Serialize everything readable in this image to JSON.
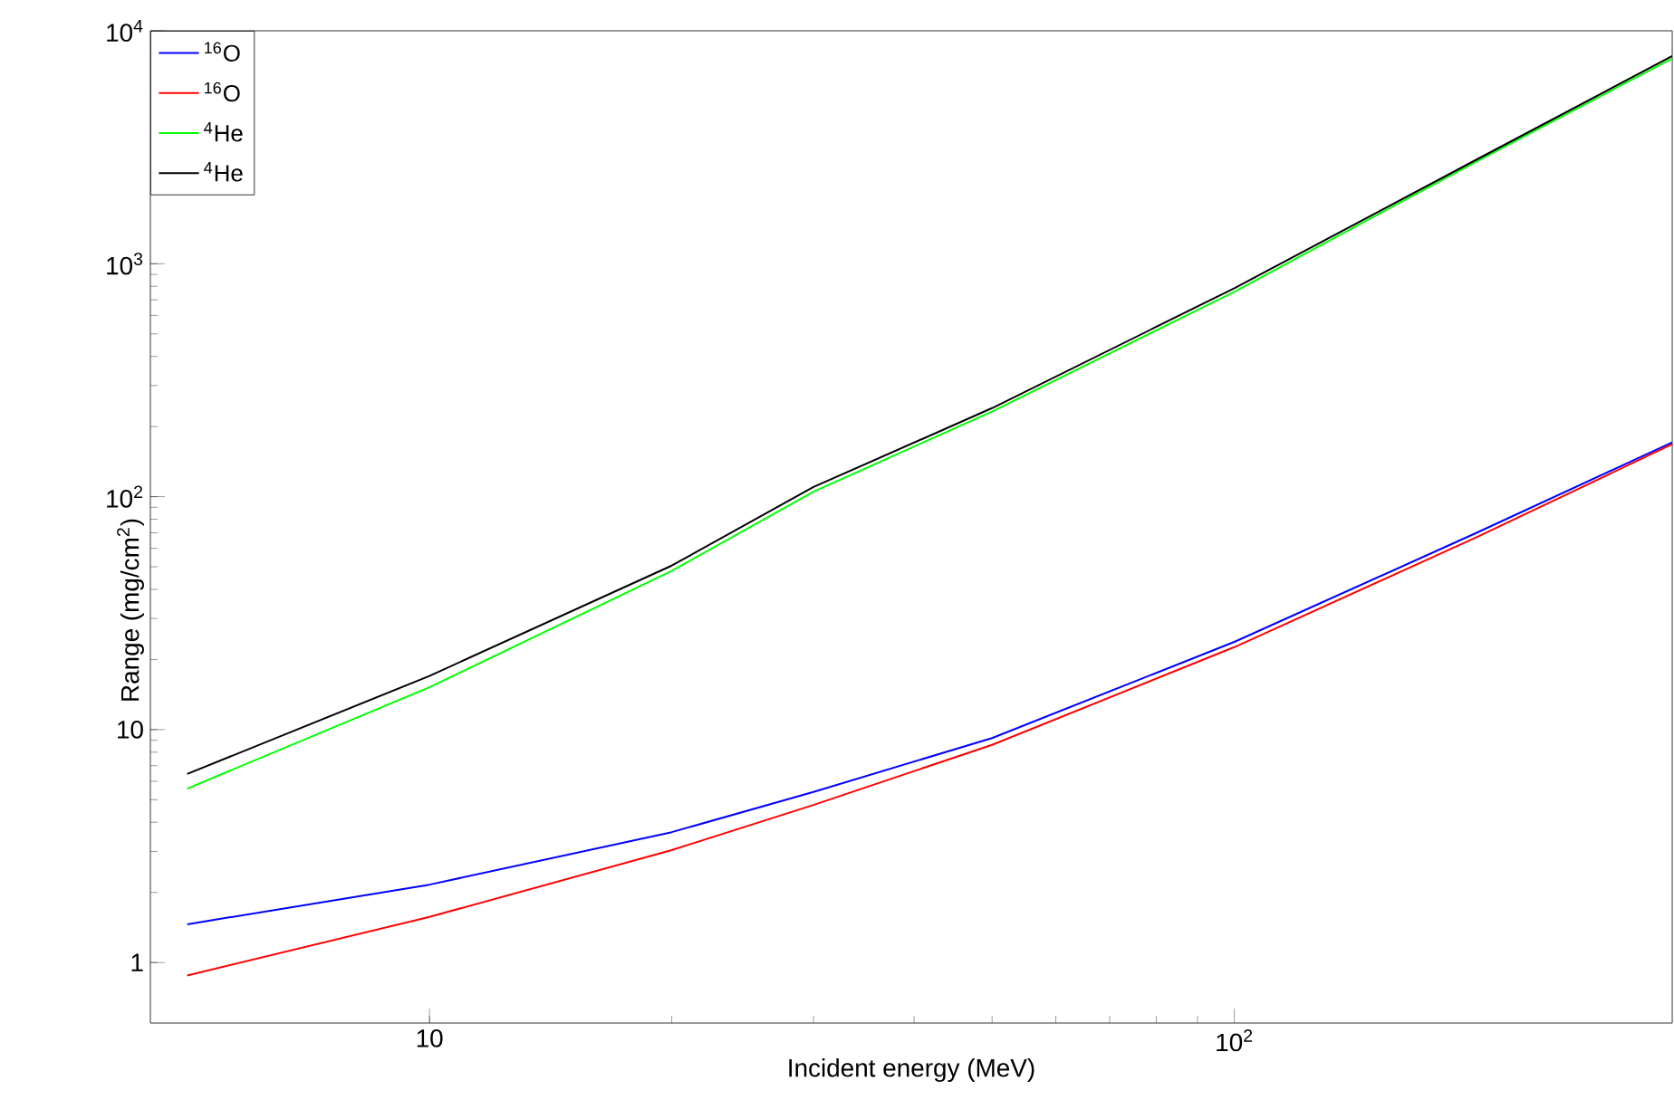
{
  "chart_data": {
    "type": "line",
    "xlabel": "Incident energy (MeV)",
    "ylabel": "Range (mg/cm$^{2}$)",
    "log": "xy",
    "legend": "top left",
    "grid": false,
    "line_style": "solid",
    "marker": "none",
    "xlim": [
      4.5,
      350
    ],
    "ylim": [
      0.55,
      10000
    ],
    "xticks": [
      10,
      {
        "value": 100,
        "label": "10$^{2}$"
      }
    ],
    "yticks": [
      1,
      10,
      {
        "value": 100,
        "label": "10$^{2}$"
      },
      {
        "value": 1000,
        "label": "10$^{3}$"
      },
      {
        "value": 10000,
        "label": "10$^{4}$"
      }
    ],
    "x": [
      5,
      10,
      20,
      30,
      50,
      100,
      200,
      350
    ],
    "series": [
      {
        "name": "$^{16}$O",
        "color": "#0000ff",
        "values": [
          1.46,
          2.16,
          3.63,
          5.4,
          9.2,
          23.8,
          70,
          171
        ]
      },
      {
        "name": "$^{16}$O",
        "color": "#ff0000",
        "values": [
          0.88,
          1.57,
          3.04,
          4.75,
          8.6,
          22.6,
          67,
          168
        ]
      },
      {
        "name": "$^{4}$He",
        "color": "#00ff00",
        "values": [
          5.58,
          15.2,
          48,
          105,
          232,
          758,
          2750,
          7600
        ]
      },
      {
        "name": "$^{4}$He",
        "color": "#000000",
        "values": [
          6.45,
          17,
          50.6,
          110,
          240,
          785,
          2800,
          7800
        ]
      }
    ]
  }
}
